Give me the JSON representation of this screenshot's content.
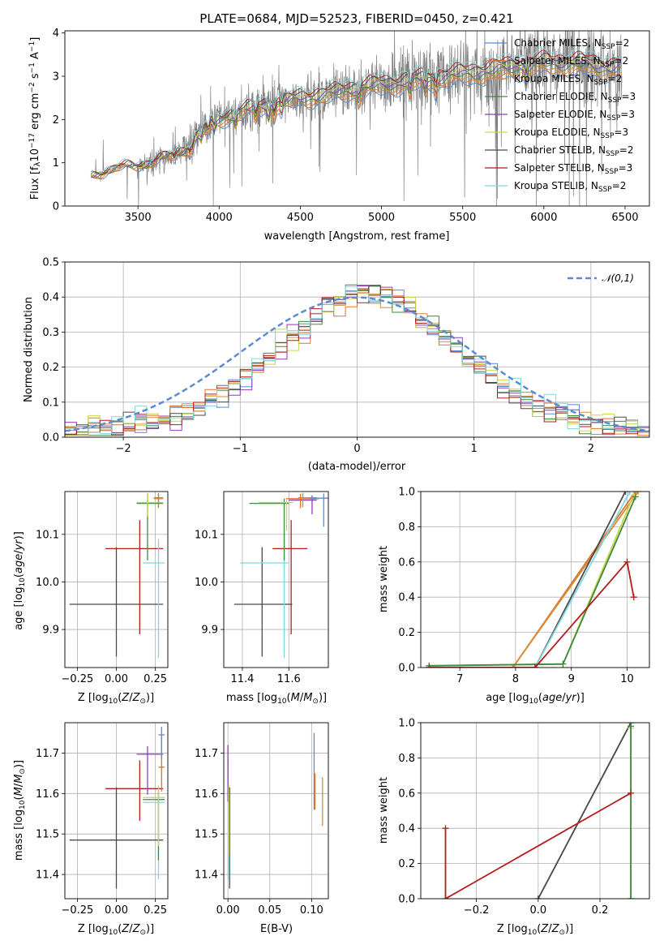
{
  "figure": {
    "title": "PLATE=0684, MJD=52523, FIBERID=0450, z=0.421"
  },
  "models": [
    {
      "name": "Chabrier MILES",
      "nssp": "2",
      "color": "#5b8bd4"
    },
    {
      "name": "Salpeter MILES",
      "nssp": "2",
      "color": "#e0722f"
    },
    {
      "name": "Kroupa MILES",
      "nssp": "2",
      "color": "#d98c32"
    },
    {
      "name": "Chabrier ELODIE",
      "nssp": "3",
      "color": "#3c8a3c"
    },
    {
      "name": "Salpeter ELODIE",
      "nssp": "3",
      "color": "#8e3fb5"
    },
    {
      "name": "Kroupa ELODIE",
      "nssp": "3",
      "color": "#c9d64a"
    },
    {
      "name": "Chabrier STELIB",
      "nssp": "2",
      "color": "#4a4a4a"
    },
    {
      "name": "Salpeter STELIB",
      "nssp": "3",
      "color": "#b51c1c"
    },
    {
      "name": "Kroupa STELIB",
      "nssp": "2",
      "color": "#7fd8e0"
    }
  ],
  "chart_data": [
    {
      "id": "spectrum",
      "type": "line",
      "title": "PLATE=0684, MJD=52523, FIBERID=0450, z=0.421",
      "xlabel": "wavelength [Angstrom, rest frame]",
      "ylabel": "Flux [f_λ 10^-17 erg cm^-2 s^-1 A^-1]",
      "xlim": [
        3050,
        6650
      ],
      "ylim": [
        0,
        4.05
      ],
      "xticks": [
        3500,
        4000,
        4500,
        5000,
        5500,
        6000,
        6500
      ],
      "yticks": [
        0,
        1,
        2,
        3,
        4
      ],
      "continuum": {
        "wavelength": [
          3210,
          3300,
          3400,
          3500,
          3600,
          3700,
          3800,
          3900,
          4000,
          4100,
          4200,
          4300,
          4400,
          4500,
          4600,
          4700,
          4800,
          4900,
          5000,
          5100,
          5200,
          5300,
          5400,
          5500,
          5600,
          5700,
          5800,
          5900,
          6000,
          6100,
          6200,
          6300,
          6400,
          6480
        ],
        "flux": [
          0.7,
          0.82,
          0.9,
          0.95,
          1.05,
          1.15,
          1.35,
          1.75,
          2.0,
          2.15,
          2.25,
          2.35,
          2.4,
          2.5,
          2.55,
          2.6,
          2.7,
          2.75,
          2.8,
          2.85,
          2.9,
          2.95,
          3.0,
          3.05,
          3.1,
          3.15,
          3.2,
          3.25,
          3.3,
          3.3,
          3.3,
          3.25,
          3.2,
          3.2
        ]
      },
      "data_noise_range": [
        0,
        4.05
      ]
    },
    {
      "id": "residuals",
      "type": "bar",
      "xlabel": "(data-model)/error",
      "ylabel": "Normed distribution",
      "xlim": [
        -2.5,
        2.5
      ],
      "ylim": [
        0,
        0.5
      ],
      "xticks": [
        -2,
        -1,
        0,
        1,
        2
      ],
      "yticks": [
        0.0,
        0.1,
        0.2,
        0.3,
        0.4,
        0.5
      ],
      "legend": "𝒩(0,1)",
      "legend_position": "top-right",
      "bin_width": 0.1,
      "gaussian": {
        "mean": 0,
        "sigma": 1
      }
    },
    {
      "id": "z-age",
      "type": "scatter",
      "xlabel": "Z [log10(Z/Z⊙)]",
      "ylabel": "age [log10(age/yr)]",
      "xlim": [
        -0.33,
        0.33
      ],
      "ylim": [
        9.82,
        10.19
      ],
      "xticks": [
        -0.25,
        0.0,
        0.25
      ],
      "yticks": [
        9.9,
        10.0,
        10.1
      ],
      "points": [
        {
          "model": 6,
          "x": 0.0,
          "xerr": [
            0.3,
            0.3
          ],
          "y": 9.953,
          "yerr": [
            0.11,
            0.12
          ]
        },
        {
          "model": 7,
          "x": 0.15,
          "xerr": [
            0.22,
            0.15
          ],
          "y": 10.07,
          "yerr": [
            0.18,
            0.06
          ]
        },
        {
          "model": 8,
          "x": 0.27,
          "xerr": [
            0.1,
            0.04
          ],
          "y": 10.04,
          "yerr": [
            0.2,
            0.05
          ]
        },
        {
          "model": 3,
          "x": 0.2,
          "xerr": [
            0.07,
            0.1
          ],
          "y": 10.165,
          "yerr": [
            0.12,
            0.02
          ]
        },
        {
          "model": 5,
          "x": 0.2,
          "xerr": [
            0.07,
            0.1
          ],
          "y": 10.167,
          "yerr": [
            0.03,
            0.02
          ]
        },
        {
          "model": 2,
          "x": 0.27,
          "xerr": [
            0.03,
            0.03
          ],
          "y": 10.175,
          "yerr": [
            0.02,
            0.01
          ]
        },
        {
          "model": 1,
          "x": 0.27,
          "xerr": [
            0.03,
            0.03
          ],
          "y": 10.177,
          "yerr": [
            0.02,
            0.01
          ]
        }
      ]
    },
    {
      "id": "mass-age",
      "type": "scatter",
      "xlabel": "mass [log10(M/M⊙)]",
      "ylabel": "",
      "xlim": [
        11.32,
        11.77
      ],
      "ylim": [
        9.82,
        10.19
      ],
      "xticks": [
        11.4,
        11.6
      ],
      "yticks": [
        9.9,
        10.0,
        10.1
      ],
      "points": [
        {
          "model": 6,
          "x": 11.485,
          "xerr": [
            0.12,
            0.13
          ],
          "y": 9.953,
          "yerr": [
            0.11,
            0.12
          ]
        },
        {
          "model": 7,
          "x": 11.61,
          "xerr": [
            0.08,
            0.07
          ],
          "y": 10.07,
          "yerr": [
            0.18,
            0.06
          ]
        },
        {
          "model": 8,
          "x": 11.58,
          "xerr": [
            0.19,
            0.02
          ],
          "y": 10.04,
          "yerr": [
            0.2,
            0.06
          ]
        },
        {
          "model": 3,
          "x": 11.58,
          "xerr": [
            0.15,
            0.02
          ],
          "y": 10.165,
          "yerr": [
            0.12,
            0.01
          ]
        },
        {
          "model": 5,
          "x": 11.59,
          "xerr": [
            0.12,
            0.03
          ],
          "y": 10.167,
          "yerr": [
            0.06,
            0.01
          ]
        },
        {
          "model": 4,
          "x": 11.7,
          "xerr": [
            0.1,
            0.02
          ],
          "y": 10.172,
          "yerr": [
            0.03,
            0.01
          ]
        },
        {
          "model": 1,
          "x": 11.65,
          "xerr": [
            0.06,
            0.08
          ],
          "y": 10.175,
          "yerr": [
            0.02,
            0.01
          ]
        },
        {
          "model": 2,
          "x": 11.66,
          "xerr": [
            0.02,
            0.06
          ],
          "y": 10.177,
          "yerr": [
            0.02,
            0.01
          ]
        },
        {
          "model": 0,
          "x": 11.75,
          "xerr": [
            0.06,
            0.02
          ],
          "y": 10.176,
          "yerr": [
            0.06,
            0.01
          ]
        }
      ]
    },
    {
      "id": "age-cumulative",
      "type": "line",
      "xlabel": "age [log10(age/yr)]",
      "ylabel": "mass weight",
      "xlim": [
        6.3,
        10.4
      ],
      "ylim": [
        0,
        1
      ],
      "xticks": [
        7,
        8,
        9,
        10
      ],
      "yticks": [
        0.0,
        0.2,
        0.4,
        0.6,
        0.8,
        1.0
      ],
      "series": [
        {
          "model": 1,
          "x": [
            6.45,
            7.95,
            10.15
          ],
          "y": [
            0.0,
            0.0,
            1.0
          ]
        },
        {
          "model": 2,
          "x": [
            6.45,
            7.95,
            10.2
          ],
          "y": [
            0.0,
            0.0,
            1.0
          ]
        },
        {
          "model": 6,
          "x": [
            6.45,
            8.35,
            9.97
          ],
          "y": [
            0.0,
            0.0,
            1.0
          ]
        },
        {
          "model": 8,
          "x": [
            6.45,
            8.35,
            10.05
          ],
          "y": [
            0.0,
            0.0,
            1.0
          ]
        },
        {
          "model": 5,
          "x": [
            6.45,
            8.85,
            10.12
          ],
          "y": [
            0.01,
            0.02,
            0.98
          ]
        },
        {
          "model": 3,
          "x": [
            6.45,
            8.85,
            10.15
          ],
          "y": [
            0.01,
            0.02,
            0.97
          ]
        },
        {
          "model": 7,
          "x": [
            6.45,
            8.35,
            10.0,
            10.12
          ],
          "y": [
            0.0,
            0.0,
            0.6,
            0.4
          ]
        }
      ]
    },
    {
      "id": "z-mass",
      "type": "scatter",
      "xlabel": "Z [log10(Z/Z⊙)]",
      "ylabel": "mass [log10(M/M⊙)]",
      "xlim": [
        -0.33,
        0.33
      ],
      "ylim": [
        11.34,
        11.775
      ],
      "xticks": [
        -0.25,
        0.0,
        0.25
      ],
      "yticks": [
        11.4,
        11.5,
        11.6,
        11.7
      ],
      "points": [
        {
          "model": 6,
          "x": 0.0,
          "xerr": [
            0.3,
            0.3
          ],
          "y": 11.485,
          "yerr": [
            0.12,
            0.13
          ]
        },
        {
          "model": 7,
          "x": 0.15,
          "xerr": [
            0.22,
            0.15
          ],
          "y": 11.612,
          "yerr": [
            0.08,
            0.07
          ]
        },
        {
          "model": 8,
          "x": 0.27,
          "xerr": [
            0.1,
            0.04
          ],
          "y": 11.578,
          "yerr": [
            0.19,
            0.02
          ]
        },
        {
          "model": 3,
          "x": 0.27,
          "xerr": [
            0.1,
            0.04
          ],
          "y": 11.585,
          "yerr": [
            0.15,
            0.02
          ]
        },
        {
          "model": 5,
          "x": 0.27,
          "xerr": [
            0.1,
            0.04
          ],
          "y": 11.59,
          "yerr": [
            0.12,
            0.03
          ]
        },
        {
          "model": 4,
          "x": 0.2,
          "xerr": [
            0.07,
            0.1
          ],
          "y": 11.697,
          "yerr": [
            0.1,
            0.02
          ]
        },
        {
          "model": 1,
          "x": 0.29,
          "xerr": [
            0.02,
            0.02
          ],
          "y": 11.665,
          "yerr": [
            0.06,
            0.08
          ]
        },
        {
          "model": 0,
          "x": 0.29,
          "xerr": [
            0.02,
            0.02
          ],
          "y": 11.745,
          "yerr": [
            0.06,
            0.02
          ]
        }
      ]
    },
    {
      "id": "ebv-mass",
      "type": "scatter",
      "xlabel": "E(B-V)",
      "ylabel": "",
      "xlim": [
        -0.005,
        0.12
      ],
      "ylim": [
        11.34,
        11.775
      ],
      "xticks": [
        0.0,
        0.05,
        0.1
      ],
      "yticks": [
        11.4,
        11.5,
        11.6,
        11.7
      ],
      "points": [
        {
          "model": 6,
          "x": 0.002,
          "y": 11.485,
          "yerr": [
            0.12,
            0.13
          ]
        },
        {
          "model": 7,
          "x": 0.0,
          "y": 11.612,
          "yerr": [
            0.03,
            0.07
          ]
        },
        {
          "model": 4,
          "x": 0.0,
          "y": 11.66,
          "yerr": [
            0.08,
            0.06
          ]
        },
        {
          "model": 8,
          "x": 0.001,
          "y": 11.578,
          "yerr": [
            0.19,
            0.02
          ]
        },
        {
          "model": 5,
          "x": 0.001,
          "y": 11.59,
          "yerr": [
            0.14,
            0.03
          ]
        },
        {
          "model": 0,
          "x": 0.103,
          "y": 11.64,
          "yerr": [
            0.08,
            0.11
          ]
        },
        {
          "model": 2,
          "x": 0.113,
          "y": 11.58,
          "yerr": [
            0.06,
            0.06
          ]
        },
        {
          "model": 1,
          "x": 0.104,
          "y": 11.6,
          "yerr": [
            0.04,
            0.05
          ]
        }
      ]
    },
    {
      "id": "z-cumulative",
      "type": "line",
      "xlabel": "Z [log10(Z/Z⊙)]",
      "ylabel": "mass weight",
      "xlim": [
        -0.38,
        0.36
      ],
      "ylim": [
        0,
        1
      ],
      "xticks": [
        -0.2,
        0.0,
        0.2
      ],
      "yticks": [
        0.0,
        0.2,
        0.4,
        0.6,
        0.8,
        1.0
      ],
      "series": [
        {
          "model": 8,
          "x": [
            0.0,
            0.3,
            0.3
          ],
          "y": [
            0.0,
            1.0,
            0.97
          ]
        },
        {
          "model": 6,
          "x": [
            0.0,
            0.3
          ],
          "y": [
            0.0,
            1.0
          ]
        },
        {
          "model": 5,
          "x": [
            0.3,
            0.3
          ],
          "y": [
            0.0,
            0.97
          ]
        },
        {
          "model": 3,
          "x": [
            0.3,
            0.3
          ],
          "y": [
            0.0,
            0.98
          ]
        },
        {
          "model": 7,
          "x": [
            -0.3,
            -0.3,
            0.3
          ],
          "y": [
            0.4,
            0.0,
            0.6
          ]
        }
      ]
    }
  ]
}
